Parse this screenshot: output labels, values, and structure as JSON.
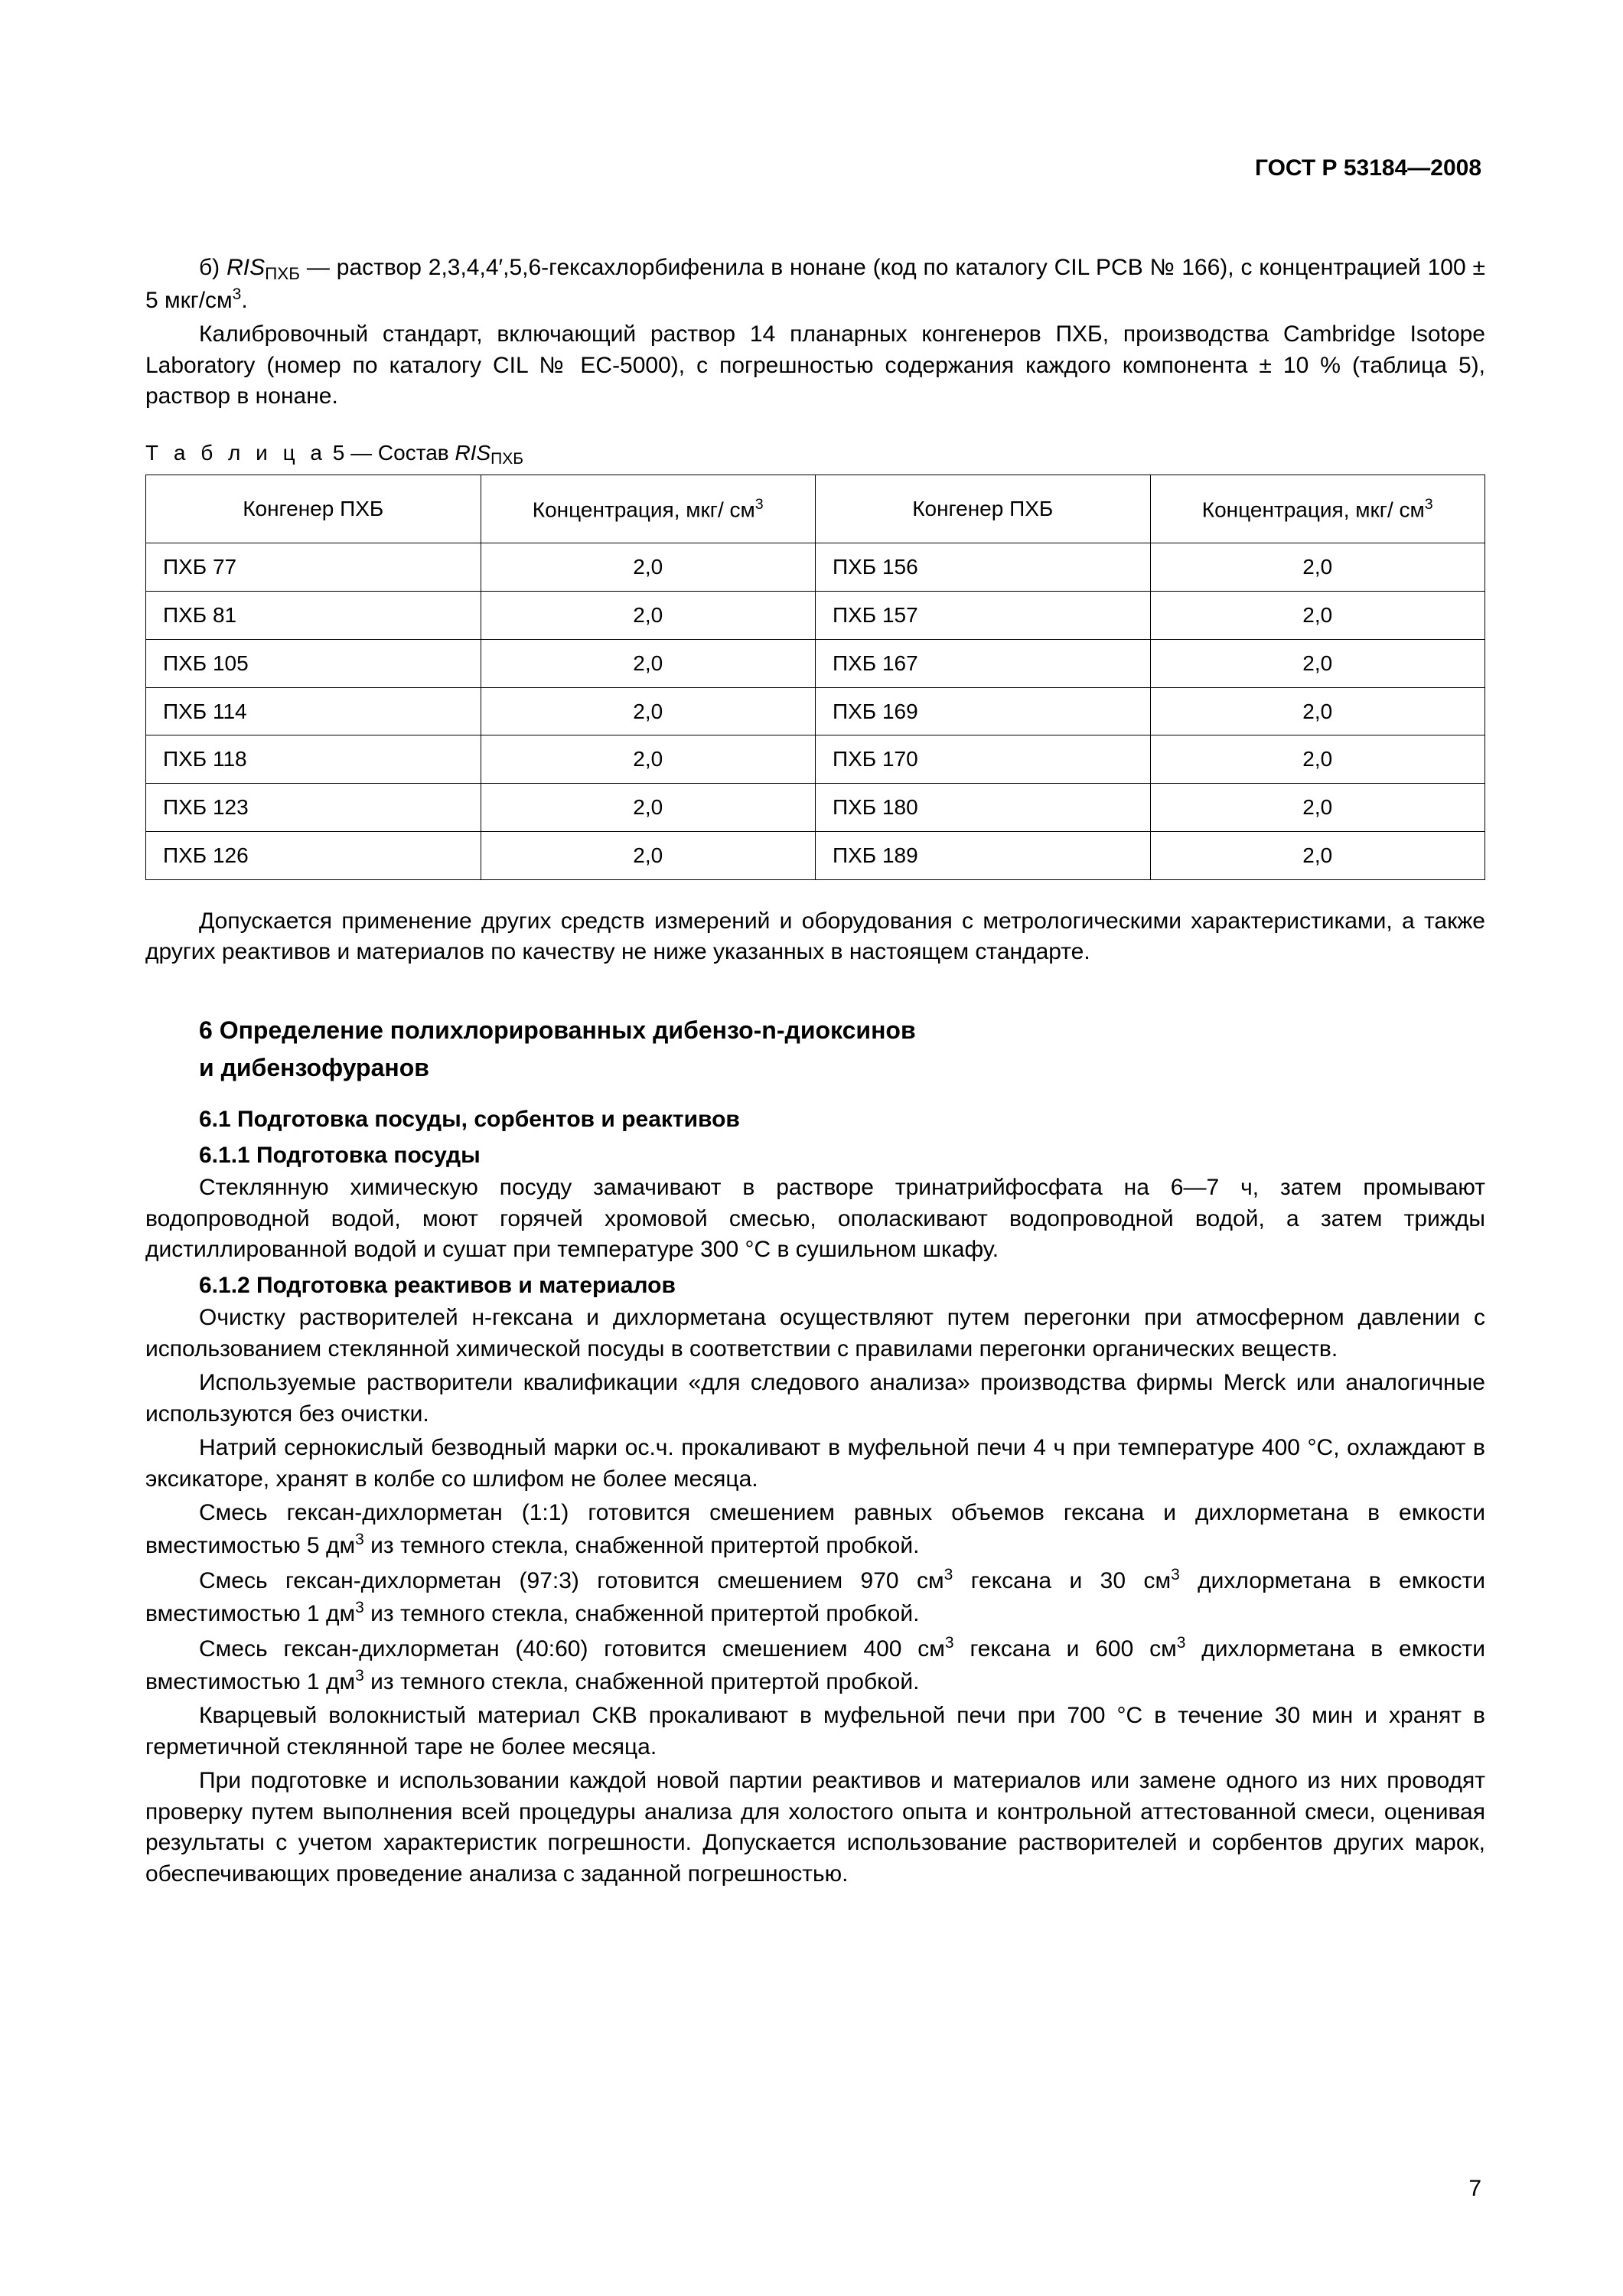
{
  "doc_code": "ГОСТ Р 53184—2008",
  "page_number": "7",
  "para_b_prefix": "б)  ",
  "para_b_ris_pre": "RIS",
  "para_b_ris_sub": "ПХБ",
  "para_b_text1": " — раствор 2,3,4,4′,5,6-гексахлорбифенила в нонане (код по каталогу CIL PCB № 166), с концентрацией 100 ± 5 мкг/см",
  "para_b_sup1": "3",
  "para_b_text2": ".",
  "para_calib": "Калибровочный стандарт, включающий раствор 14 планарных конгенеров ПХБ, производства Cambridge Isotope Laboratory (номер по каталогу CIL № EC-5000), с погрешностью содержания каждого компонента ± 10 % (таблица 5), раствор в нонане.",
  "table_caption_label": "Т а б л и ц а",
  "table_caption_num": "  5 — Состав ",
  "table_caption_ris": "RIS",
  "table_caption_sub": "ПХБ",
  "table": {
    "columns": [
      {
        "header_plain": "Конгенер ПХБ",
        "is_conc": false,
        "align": "left",
        "width": "25%"
      },
      {
        "header_plain": "Концентрация, мкг/ см",
        "header_sup": "3",
        "is_conc": true,
        "align": "center",
        "width": "25%"
      },
      {
        "header_plain": "Конгенер ПХБ",
        "is_conc": false,
        "align": "left",
        "width": "25%"
      },
      {
        "header_plain": "Концентрация, мкг/ см",
        "header_sup": "3",
        "is_conc": true,
        "align": "center",
        "width": "25%"
      }
    ],
    "rows": [
      [
        "ПХБ 77",
        "2,0",
        "ПХБ 156",
        "2,0"
      ],
      [
        "ПХБ 81",
        "2,0",
        "ПХБ 157",
        "2,0"
      ],
      [
        "ПХБ 105",
        "2,0",
        "ПХБ 167",
        "2,0"
      ],
      [
        "ПХБ 114",
        "2,0",
        "ПХБ 169",
        "2,0"
      ],
      [
        "ПХБ 118",
        "2,0",
        "ПХБ 170",
        "2,0"
      ],
      [
        "ПХБ 123",
        "2,0",
        "ПХБ 180",
        "2,0"
      ],
      [
        "ПХБ 126",
        "2,0",
        "ПХБ 189",
        "2,0"
      ]
    ]
  },
  "para_after_table": "Допускается применение других средств измерений и оборудования с метрологическими характеристиками, а также других реактивов и материалов по качеству не ниже указанных в настоящем стандарте.",
  "section6_line1": "6  Определение полихлорированных дибензо-n-диоксинов",
  "section6_line2": "и дибензофуранов",
  "sec61": "6.1  Подготовка посуды, сорбентов и реактивов",
  "sec611": "6.1.1  Подготовка посуды",
  "para611": "Стеклянную химическую посуду замачивают в растворе тринатрийфосфата на 6—7 ч, затем промывают водопроводной водой, моют горячей хромовой смесью, ополаскивают водопроводной водой, а затем трижды дистиллированной водой и сушат при температуре 300 °С в сушильном шкафу.",
  "sec612": "6.1.2  Подготовка реактивов и материалов",
  "para612_1": "Очистку растворителей н-гексана и дихлорметана осуществляют путем перегонки при атмосферном давлении с использованием стеклянной химической посуды в соответствии с правилами перегонки органических веществ.",
  "para612_2": "Используемые растворители квалификации «для следового анализа» производства фирмы Merck или аналогичные используются без очистки.",
  "para612_3": "Натрий сернокислый безводный марки ос.ч. прокаливают в муфельной печи 4 ч при температуре 400 °С, охлаждают в эксикаторе, хранят в колбе со шлифом не более месяца.",
  "para612_4a": "Смесь гексан-дихлорметан (1:1) готовится смешением равных объемов гексана и дихлорметана в емкости вместимостью 5 дм",
  "para612_4sup": "3",
  "para612_4b": " из темного стекла, снабженной притертой пробкой.",
  "para612_5a": "Смесь гексан-дихлорметан (97:3) готовится смешением 970 см",
  "para612_5sup1": "3",
  "para612_5b": " гексана и 30 см",
  "para612_5sup2": "3",
  "para612_5c": " дихлорметана в емкости вместимостью 1 дм",
  "para612_5sup3": "3",
  "para612_5d": " из темного стекла, снабженной притертой пробкой.",
  "para612_6a": "Смесь гексан-дихлорметан (40:60) готовится смешением 400 см",
  "para612_6sup1": "3",
  "para612_6b": " гексана и 600 см",
  "para612_6sup2": "3",
  "para612_6c": " дихлорметана в емкости вместимостью 1 дм",
  "para612_6sup3": "3",
  "para612_6d": " из темного стекла, снабженной притертой пробкой.",
  "para612_7": "Кварцевый волокнистый материал СКВ прокаливают в муфельной печи при 700 °С в течение 30 мин и хранят в герметичной стеклянной таре не более месяца.",
  "para612_8": "При подготовке и использовании каждой новой партии реактивов и материалов или замене одного из них проводят проверку путем выполнения всей процедуры анализа для холостого опыта и контрольной аттестованной смеси, оценивая результаты с учетом характеристик погрешности. Допускается использование растворителей и сорбентов других марок, обеспечивающих проведение анализа с заданной погрешностью."
}
